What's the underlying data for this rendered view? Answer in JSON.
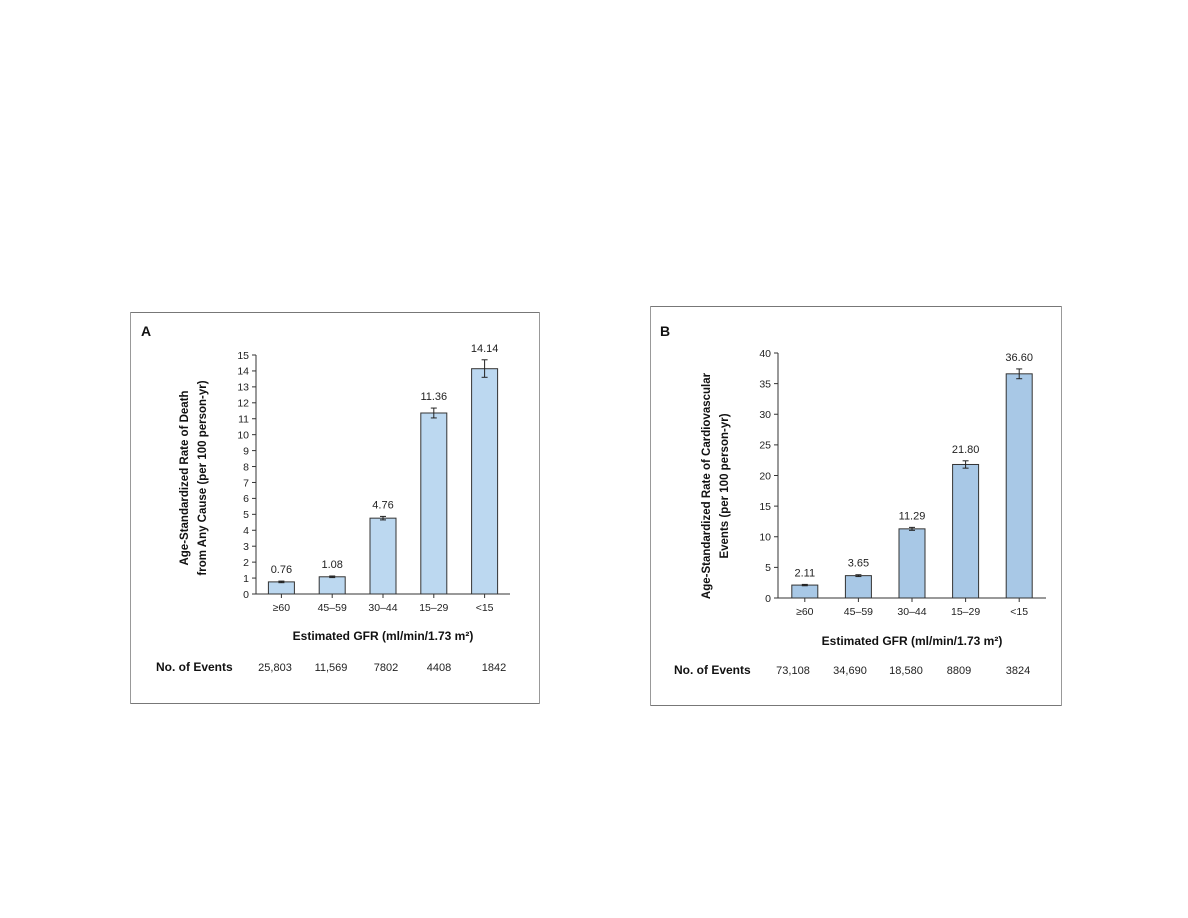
{
  "chart_data": [
    {
      "type": "bar",
      "panel_label": "A",
      "categories": [
        "≥60",
        "45–59",
        "30–44",
        "15–29",
        "<15"
      ],
      "values": [
        0.76,
        1.08,
        4.76,
        11.36,
        14.14
      ],
      "value_labels": [
        "0.76",
        "1.08",
        "4.76",
        "11.36",
        "14.14"
      ],
      "error_bars": [
        [
          0.71,
          0.81
        ],
        [
          1.03,
          1.13
        ],
        [
          4.65,
          4.87
        ],
        [
          11.05,
          11.67
        ],
        [
          13.6,
          14.7
        ]
      ],
      "ylabel_line1": "Age-Standardized Rate of Death",
      "ylabel_line2": "from Any Cause (per 100 person-yr)",
      "xlabel": "Estimated GFR (ml/min/1.73 m²)",
      "ylim": [
        0,
        15
      ],
      "yticks": [
        0,
        1,
        2,
        3,
        4,
        5,
        6,
        7,
        8,
        9,
        10,
        11,
        12,
        13,
        14,
        15
      ],
      "events_label": "No. of Events",
      "events": [
        "25,803",
        "11,569",
        "7802",
        "4408",
        "1842"
      ],
      "bar_color": "#bcd8f0",
      "bar_stroke": "#333333",
      "grid": false,
      "legend": "none"
    },
    {
      "type": "bar",
      "panel_label": "B",
      "categories": [
        "≥60",
        "45–59",
        "30–44",
        "15–29",
        "<15"
      ],
      "values": [
        2.11,
        3.65,
        11.29,
        21.8,
        36.6
      ],
      "value_labels": [
        "2.11",
        "3.65",
        "11.29",
        "21.80",
        "36.60"
      ],
      "error_bars": [
        [
          2.0,
          2.22
        ],
        [
          3.5,
          3.8
        ],
        [
          11.05,
          11.53
        ],
        [
          21.2,
          22.4
        ],
        [
          35.8,
          37.4
        ]
      ],
      "ylabel_line1": "Age-Standardized Rate of Cardiovascular",
      "ylabel_line2": "Events (per 100 person-yr)",
      "xlabel": "Estimated GFR (ml/min/1.73 m²)",
      "ylim": [
        0,
        40
      ],
      "yticks": [
        0,
        5,
        10,
        15,
        20,
        25,
        30,
        35,
        40
      ],
      "events_label": "No. of Events",
      "events": [
        "73,108",
        "34,690",
        "18,580",
        "8809",
        "3824"
      ],
      "bar_color": "#a8c8e6",
      "bar_stroke": "#333333",
      "grid": false,
      "legend": "none"
    }
  ]
}
